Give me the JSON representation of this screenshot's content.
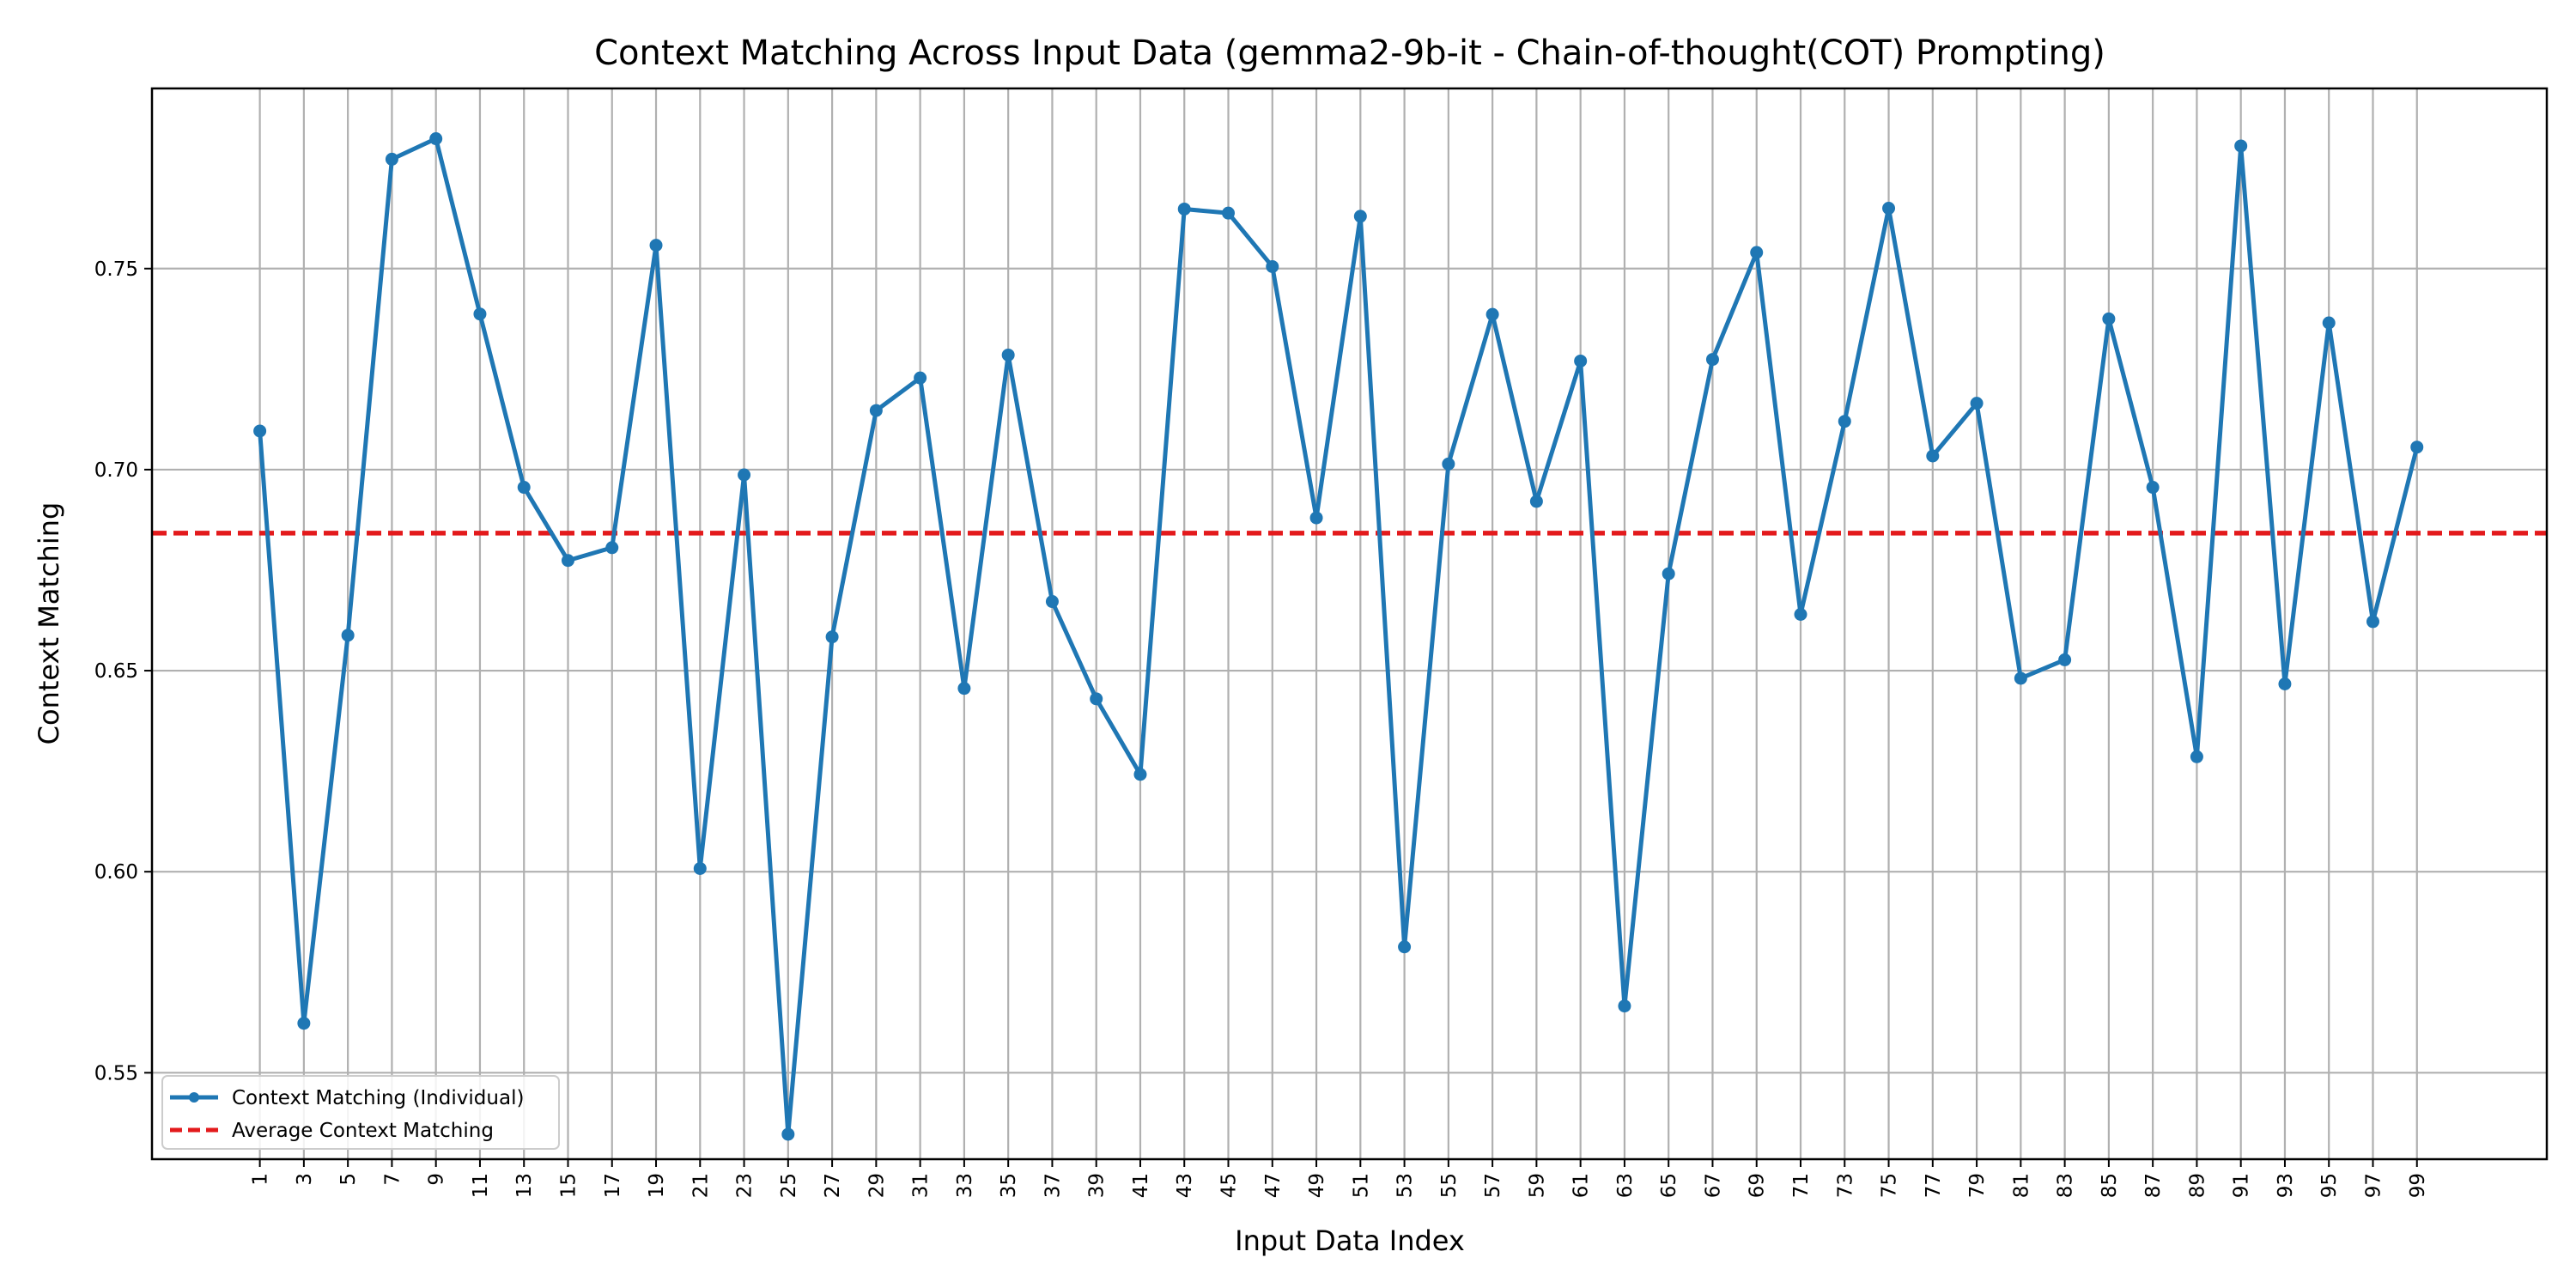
{
  "chart_data": {
    "type": "line",
    "title": "Context Matching Across Input Data (gemma2-9b-it - Chain-of-thought(COT) Prompting)",
    "xlabel": "Input Data Index",
    "ylabel": "Context Matching",
    "xlim": [
      -3.9,
      104.9
    ],
    "ylim": [
      0.5285,
      0.7948
    ],
    "x_ticks": [
      1,
      3,
      5,
      7,
      9,
      11,
      13,
      15,
      17,
      19,
      21,
      23,
      25,
      27,
      29,
      31,
      33,
      35,
      37,
      39,
      41,
      43,
      45,
      47,
      49,
      51,
      53,
      55,
      57,
      59,
      61,
      63,
      65,
      67,
      69,
      71,
      73,
      75,
      77,
      79,
      81,
      83,
      85,
      87,
      89,
      91,
      93,
      95,
      97,
      99
    ],
    "y_ticks": [
      0.55,
      0.6,
      0.65,
      0.7,
      0.75
    ],
    "y_tick_labels": [
      "0.55",
      "0.60",
      "0.65",
      "0.70",
      "0.75"
    ],
    "grid": true,
    "legend_position": "lower-left",
    "series": [
      {
        "name": "Context Matching (Individual)",
        "color": "#1f77b4",
        "style": "solid",
        "marker": "circle",
        "x": [
          1,
          3,
          5,
          7,
          9,
          11,
          13,
          15,
          17,
          19,
          21,
          23,
          25,
          27,
          29,
          31,
          33,
          35,
          37,
          39,
          41,
          43,
          45,
          47,
          49,
          51,
          53,
          55,
          57,
          59,
          61,
          63,
          65,
          67,
          69,
          71,
          73,
          75,
          77,
          79,
          81,
          83,
          85,
          87,
          89,
          91,
          93,
          95,
          97,
          99
        ],
        "values": [
          0.7096,
          0.5623,
          0.6588,
          0.7772,
          0.7823,
          0.7387,
          0.6956,
          0.6774,
          0.6806,
          0.7558,
          0.6008,
          0.6987,
          0.5347,
          0.6584,
          0.7147,
          0.7228,
          0.6456,
          0.7285,
          0.6672,
          0.643,
          0.6242,
          0.7648,
          0.7638,
          0.7505,
          0.688,
          0.763,
          0.5813,
          0.7014,
          0.7386,
          0.6921,
          0.727,
          0.5666,
          0.6741,
          0.7274,
          0.754,
          0.664,
          0.712,
          0.765,
          0.7034,
          0.7165,
          0.6481,
          0.6527,
          0.7375,
          0.6956,
          0.6286,
          0.7805,
          0.6467,
          0.7365,
          0.6622,
          0.7056
        ]
      },
      {
        "name": "Average Context Matching",
        "color": "#e31a1c",
        "style": "dashed",
        "marker": "none",
        "y": 0.6842
      }
    ]
  }
}
